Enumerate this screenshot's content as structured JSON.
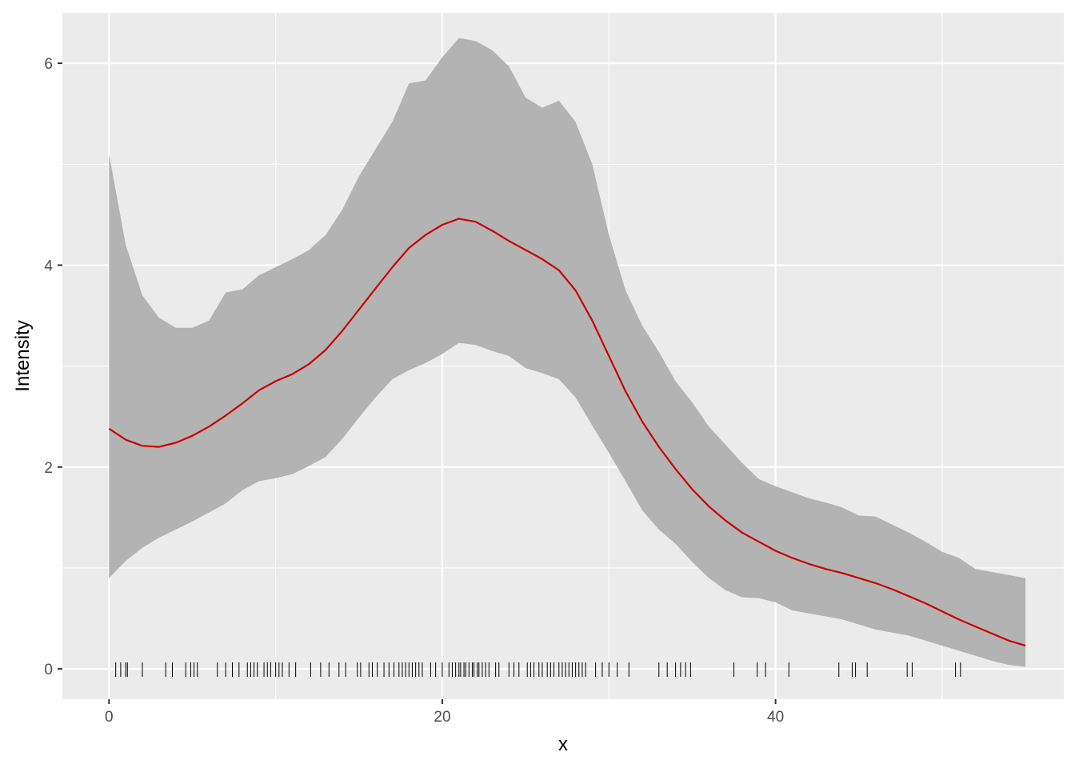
{
  "chart_data": {
    "type": "area",
    "xlabel": "x",
    "ylabel": "Intensity",
    "xlim": [
      -2.8,
      57.3
    ],
    "ylim": [
      -0.3,
      6.5
    ],
    "x_ticks": [
      0,
      20,
      40
    ],
    "x_tick_labels": [
      "0",
      "20",
      "40"
    ],
    "y_ticks": [
      0,
      2,
      4,
      6
    ],
    "y_tick_labels": [
      "0",
      "2",
      "4",
      "6"
    ],
    "x_minor": [
      10,
      30,
      50
    ],
    "y_minor": [
      1,
      3,
      5
    ],
    "grid": true,
    "panel_background": "#ebebeb",
    "ribbon_color": "#b3b3b3",
    "line_color": "#cc0000",
    "rug_color": "#000000",
    "series": [
      {
        "x": [
          0,
          1,
          2,
          3,
          4,
          5,
          6,
          7,
          8,
          9,
          10,
          11,
          12,
          13,
          14,
          15,
          16,
          17,
          18,
          19,
          20,
          21,
          22,
          23,
          24,
          25,
          26,
          27,
          28,
          29,
          30,
          31,
          32,
          33,
          34,
          35,
          36,
          37,
          38,
          39,
          40,
          41,
          42,
          43,
          44,
          45,
          46,
          47,
          48,
          49,
          50,
          51,
          52,
          53,
          54,
          55
        ],
        "y": [
          2.38,
          2.27,
          2.21,
          2.2,
          2.24,
          2.31,
          2.4,
          2.51,
          2.63,
          2.76,
          2.85,
          2.92,
          3.02,
          3.16,
          3.35,
          3.56,
          3.77,
          3.98,
          4.17,
          4.3,
          4.4,
          4.46,
          4.43,
          4.34,
          4.24,
          4.15,
          4.06,
          3.95,
          3.75,
          3.45,
          3.1,
          2.75,
          2.45,
          2.2,
          1.98,
          1.78,
          1.61,
          1.47,
          1.35,
          1.26,
          1.17,
          1.1,
          1.04,
          0.99,
          0.95,
          0.9,
          0.85,
          0.79,
          0.72,
          0.65,
          0.57,
          0.49,
          0.42,
          0.35,
          0.28,
          0.23
        ],
        "upper": [
          5.1,
          4.2,
          3.7,
          3.48,
          3.38,
          3.38,
          3.45,
          3.73,
          3.76,
          3.9,
          3.98,
          4.06,
          4.15,
          4.3,
          4.55,
          4.88,
          5.15,
          5.42,
          5.8,
          5.83,
          6.06,
          6.25,
          6.22,
          6.13,
          5.97,
          5.66,
          5.56,
          5.63,
          5.42,
          5.0,
          4.3,
          3.75,
          3.4,
          3.14,
          2.85,
          2.64,
          2.4,
          2.22,
          2.04,
          1.88,
          1.81,
          1.75,
          1.69,
          1.65,
          1.6,
          1.52,
          1.51,
          1.43,
          1.35,
          1.26,
          1.16,
          1.1,
          0.99,
          0.96,
          0.93,
          0.9
        ],
        "lower": [
          0.9,
          1.07,
          1.2,
          1.3,
          1.38,
          1.46,
          1.55,
          1.64,
          1.77,
          1.86,
          1.89,
          1.93,
          2.01,
          2.1,
          2.28,
          2.49,
          2.69,
          2.87,
          2.96,
          3.03,
          3.12,
          3.23,
          3.21,
          3.15,
          3.1,
          2.98,
          2.93,
          2.87,
          2.69,
          2.41,
          2.14,
          1.86,
          1.57,
          1.38,
          1.24,
          1.06,
          0.9,
          0.78,
          0.71,
          0.7,
          0.66,
          0.58,
          0.55,
          0.52,
          0.49,
          0.44,
          0.39,
          0.36,
          0.33,
          0.28,
          0.23,
          0.18,
          0.13,
          0.08,
          0.04,
          0.02
        ]
      }
    ],
    "rug_x": [
      0.4,
      0.7,
      1.0,
      1.1,
      2.0,
      3.4,
      3.8,
      4.6,
      4.9,
      5.1,
      5.3,
      6.5,
      7.0,
      7.4,
      7.8,
      8.3,
      8.5,
      8.7,
      8.9,
      9.3,
      9.5,
      9.7,
      10.0,
      10.2,
      10.4,
      10.8,
      11.2,
      12.1,
      12.7,
      13.2,
      13.8,
      14.2,
      14.9,
      15.1,
      15.6,
      15.8,
      16.1,
      16.5,
      16.8,
      17.1,
      17.4,
      17.6,
      17.8,
      18.0,
      18.2,
      18.4,
      18.6,
      18.8,
      19.3,
      19.6,
      20.0,
      20.4,
      20.6,
      20.8,
      21.0,
      21.1,
      21.3,
      21.4,
      21.6,
      21.8,
      21.9,
      22.1,
      22.2,
      22.4,
      22.6,
      22.8,
      23.2,
      23.4,
      24.0,
      24.3,
      24.6,
      25.1,
      25.3,
      25.5,
      25.8,
      26.0,
      26.3,
      26.5,
      26.7,
      27.0,
      27.2,
      27.4,
      27.6,
      27.8,
      28.0,
      28.2,
      28.4,
      28.6,
      29.2,
      29.6,
      30.0,
      30.5,
      31.2,
      33.0,
      33.5,
      34.0,
      34.3,
      34.6,
      34.9,
      37.5,
      38.9,
      39.4,
      40.8,
      43.8,
      44.6,
      44.8,
      45.5,
      47.9,
      48.2,
      50.8,
      51.1
    ]
  }
}
